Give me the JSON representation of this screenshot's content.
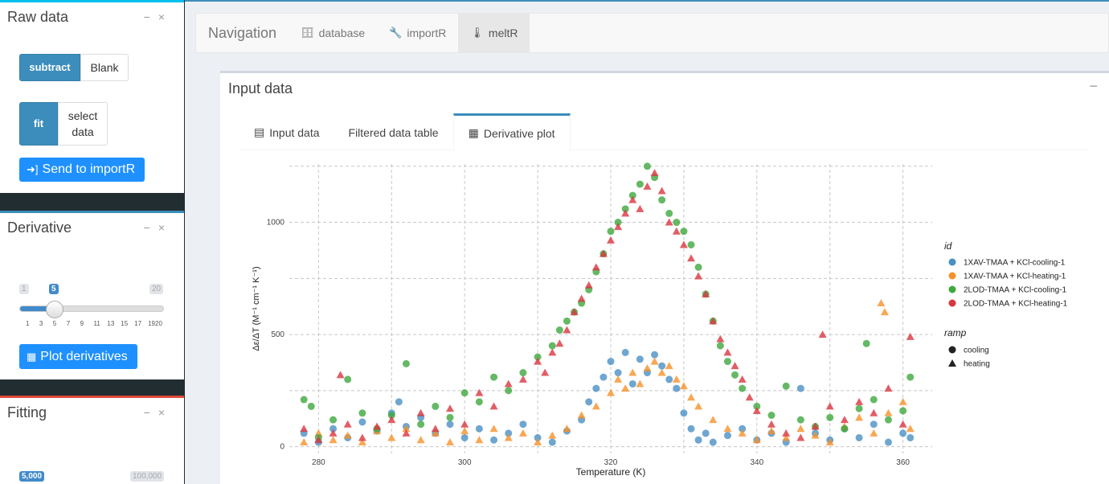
{
  "sidebar": {
    "raw": {
      "title": "Raw data",
      "collapse": "−",
      "close": "×",
      "subtract_label": "subtract",
      "blank_label": "Blank",
      "fit_label": "fit",
      "select_label_1": "select",
      "select_label_2": "data",
      "send_label": "Send to importR"
    },
    "derivative": {
      "title": "Derivative",
      "collapse": "−",
      "close": "×",
      "slider_min": "1",
      "slider_max": "20",
      "slider_value": "5",
      "slider_ticks": [
        "1",
        "3",
        "5",
        "7",
        "9",
        "11",
        "13",
        "15",
        "17",
        "19",
        "20"
      ],
      "plot_label": "Plot derivatives"
    },
    "fitting": {
      "title": "Fitting",
      "collapse": "−",
      "close": "×",
      "slider_value": "5,000",
      "slider_max": "100,000"
    }
  },
  "navbar": {
    "brand": "Navigation",
    "items": [
      {
        "label": "database",
        "icon": "database-icon",
        "active": false
      },
      {
        "label": "importR",
        "icon": "wrench-icon",
        "active": false
      },
      {
        "label": "meltR",
        "icon": "thermometer-icon",
        "active": true
      }
    ]
  },
  "main": {
    "title": "Input data",
    "collapse": "−",
    "tabs": [
      {
        "label": "Input data",
        "icon": "table-icon",
        "active": false
      },
      {
        "label": "Filtered data table",
        "icon": "",
        "active": false
      },
      {
        "label": "Derivative plot",
        "icon": "calculator-icon",
        "active": true
      }
    ]
  },
  "chart_data": {
    "type": "scatter",
    "xlabel": "Temperature (K)",
    "ylabel": "Δε/ΔT (M⁻¹ cm⁻¹ K⁻¹)",
    "xlim": [
      276,
      364
    ],
    "ylim": [
      -30,
      1260
    ],
    "x_ticks": [
      280,
      300,
      320,
      340,
      360
    ],
    "y_ticks": [
      0,
      500,
      1000
    ],
    "grid": true,
    "legend": {
      "position": "right",
      "id_title": "id",
      "ramp_title": "ramp",
      "ramp_items": [
        {
          "label": "cooling",
          "shape": "circle"
        },
        {
          "label": "heating",
          "shape": "triangle"
        }
      ]
    },
    "series": [
      {
        "name": "1XAV-TMAA + KCl-cooling-1",
        "color": "#4a90c4",
        "shape": "circle",
        "points": [
          [
            278,
            60
          ],
          [
            280,
            20
          ],
          [
            282,
            80
          ],
          [
            284,
            40
          ],
          [
            286,
            110
          ],
          [
            288,
            70
          ],
          [
            290,
            150
          ],
          [
            291,
            200
          ],
          [
            292,
            90
          ],
          [
            294,
            130
          ],
          [
            296,
            60
          ],
          [
            298,
            100
          ],
          [
            300,
            40
          ],
          [
            302,
            80
          ],
          [
            304,
            30
          ],
          [
            306,
            60
          ],
          [
            308,
            100
          ],
          [
            310,
            40
          ],
          [
            312,
            20
          ],
          [
            314,
            70
          ],
          [
            316,
            120
          ],
          [
            317,
            200
          ],
          [
            318,
            260
          ],
          [
            319,
            310
          ],
          [
            320,
            380
          ],
          [
            321,
            330
          ],
          [
            322,
            420
          ],
          [
            323,
            280
          ],
          [
            324,
            390
          ],
          [
            325,
            330
          ],
          [
            326,
            410
          ],
          [
            327,
            360
          ],
          [
            328,
            300
          ],
          [
            329,
            260
          ],
          [
            330,
            150
          ],
          [
            331,
            80
          ],
          [
            332,
            30
          ],
          [
            333,
            60
          ],
          [
            334,
            20
          ],
          [
            336,
            50
          ],
          [
            338,
            80
          ],
          [
            340,
            30
          ],
          [
            342,
            60
          ],
          [
            344,
            20
          ],
          [
            346,
            260
          ],
          [
            348,
            60
          ],
          [
            350,
            30
          ],
          [
            352,
            80
          ],
          [
            354,
            40
          ],
          [
            356,
            100
          ],
          [
            358,
            20
          ],
          [
            360,
            60
          ],
          [
            361,
            40
          ]
        ]
      },
      {
        "name": "1XAV-TMAA + KCl-heating-1",
        "color": "#f6912a",
        "shape": "triangle",
        "points": [
          [
            278,
            20
          ],
          [
            280,
            60
          ],
          [
            282,
            30
          ],
          [
            284,
            50
          ],
          [
            286,
            20
          ],
          [
            288,
            70
          ],
          [
            290,
            40
          ],
          [
            292,
            80
          ],
          [
            294,
            30
          ],
          [
            296,
            60
          ],
          [
            298,
            20
          ],
          [
            300,
            70
          ],
          [
            302,
            30
          ],
          [
            304,
            80
          ],
          [
            306,
            40
          ],
          [
            308,
            60
          ],
          [
            310,
            20
          ],
          [
            312,
            50
          ],
          [
            314,
            80
          ],
          [
            316,
            140
          ],
          [
            318,
            180
          ],
          [
            320,
            240
          ],
          [
            321,
            300
          ],
          [
            322,
            260
          ],
          [
            323,
            330
          ],
          [
            324,
            280
          ],
          [
            325,
            350
          ],
          [
            326,
            380
          ],
          [
            327,
            330
          ],
          [
            328,
            360
          ],
          [
            329,
            300
          ],
          [
            330,
            270
          ],
          [
            331,
            220
          ],
          [
            332,
            180
          ],
          [
            334,
            120
          ],
          [
            336,
            80
          ],
          [
            338,
            60
          ],
          [
            340,
            30
          ],
          [
            342,
            70
          ],
          [
            344,
            40
          ],
          [
            346,
            80
          ],
          [
            348,
            50
          ],
          [
            350,
            20
          ],
          [
            352,
            90
          ],
          [
            354,
            130
          ],
          [
            356,
            60
          ],
          [
            357,
            640
          ],
          [
            357.5,
            600
          ],
          [
            358,
            150
          ],
          [
            360,
            200
          ],
          [
            361,
            80
          ]
        ]
      },
      {
        "name": "2LOD-TMAA + KCl-cooling-1",
        "color": "#3ea83e",
        "shape": "circle",
        "points": [
          [
            278,
            210
          ],
          [
            279,
            180
          ],
          [
            280,
            40
          ],
          [
            282,
            120
          ],
          [
            284,
            300
          ],
          [
            286,
            150
          ],
          [
            288,
            80
          ],
          [
            290,
            140
          ],
          [
            292,
            370
          ],
          [
            294,
            100
          ],
          [
            296,
            180
          ],
          [
            298,
            130
          ],
          [
            300,
            240
          ],
          [
            302,
            200
          ],
          [
            304,
            310
          ],
          [
            306,
            250
          ],
          [
            308,
            330
          ],
          [
            310,
            400
          ],
          [
            312,
            450
          ],
          [
            313,
            520
          ],
          [
            314,
            560
          ],
          [
            315,
            600
          ],
          [
            316,
            640
          ],
          [
            317,
            700
          ],
          [
            318,
            780
          ],
          [
            319,
            860
          ],
          [
            320,
            960
          ],
          [
            321,
            1000
          ],
          [
            322,
            1060
          ],
          [
            323,
            1120
          ],
          [
            324,
            1170
          ],
          [
            325,
            1250
          ],
          [
            326,
            1200
          ],
          [
            327,
            1100
          ],
          [
            328,
            1040
          ],
          [
            329,
            1000
          ],
          [
            330,
            960
          ],
          [
            331,
            900
          ],
          [
            332,
            800
          ],
          [
            333,
            680
          ],
          [
            334,
            560
          ],
          [
            335,
            450
          ],
          [
            336,
            380
          ],
          [
            337,
            320
          ],
          [
            338,
            260
          ],
          [
            340,
            180
          ],
          [
            342,
            140
          ],
          [
            344,
            270
          ],
          [
            346,
            120
          ],
          [
            348,
            90
          ],
          [
            350,
            130
          ],
          [
            352,
            80
          ],
          [
            354,
            170
          ],
          [
            355,
            460
          ],
          [
            356,
            210
          ],
          [
            358,
            120
          ],
          [
            360,
            160
          ],
          [
            361,
            310
          ]
        ]
      },
      {
        "name": "2LOD-TMAA + KCl-heating-1",
        "color": "#d9363e",
        "shape": "triangle",
        "points": [
          [
            278,
            80
          ],
          [
            280,
            30
          ],
          [
            282,
            60
          ],
          [
            283,
            320
          ],
          [
            284,
            100
          ],
          [
            286,
            40
          ],
          [
            288,
            90
          ],
          [
            290,
            120
          ],
          [
            292,
            60
          ],
          [
            294,
            150
          ],
          [
            296,
            80
          ],
          [
            298,
            170
          ],
          [
            300,
            100
          ],
          [
            302,
            240
          ],
          [
            304,
            180
          ],
          [
            306,
            280
          ],
          [
            308,
            300
          ],
          [
            310,
            380
          ],
          [
            311,
            330
          ],
          [
            312,
            420
          ],
          [
            313,
            460
          ],
          [
            314,
            520
          ],
          [
            315,
            600
          ],
          [
            316,
            660
          ],
          [
            317,
            720
          ],
          [
            318,
            800
          ],
          [
            319,
            860
          ],
          [
            320,
            920
          ],
          [
            321,
            980
          ],
          [
            322,
            1040
          ],
          [
            323,
            1100
          ],
          [
            324,
            1060
          ],
          [
            325,
            1160
          ],
          [
            326,
            1220
          ],
          [
            327,
            1140
          ],
          [
            328,
            1000
          ],
          [
            329,
            960
          ],
          [
            330,
            900
          ],
          [
            331,
            840
          ],
          [
            332,
            760
          ],
          [
            333,
            680
          ],
          [
            334,
            560
          ],
          [
            335,
            480
          ],
          [
            336,
            420
          ],
          [
            337,
            360
          ],
          [
            338,
            300
          ],
          [
            339,
            220
          ],
          [
            340,
            160
          ],
          [
            342,
            100
          ],
          [
            344,
            60
          ],
          [
            346,
            40
          ],
          [
            348,
            90
          ],
          [
            349,
            500
          ],
          [
            350,
            180
          ],
          [
            352,
            120
          ],
          [
            354,
            200
          ],
          [
            356,
            150
          ],
          [
            358,
            260
          ],
          [
            360,
            100
          ],
          [
            361,
            490
          ]
        ]
      }
    ]
  }
}
